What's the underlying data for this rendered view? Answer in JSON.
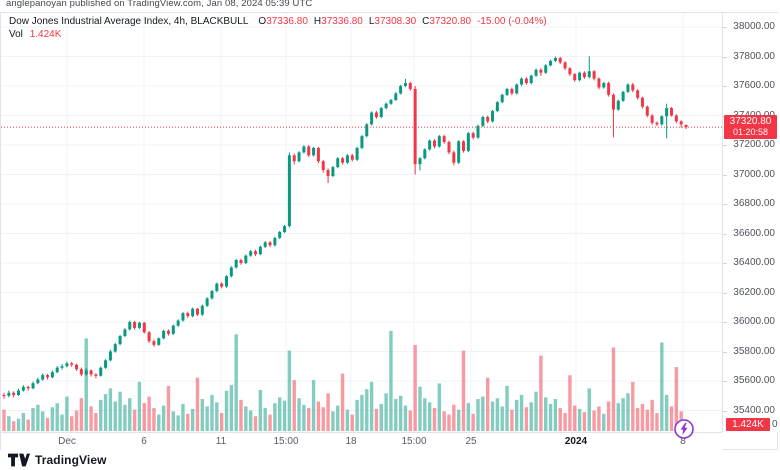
{
  "attribution": "anglepanoyan published on TradingView.com, Jan 08, 2024 05:39 UTC",
  "legend": {
    "title": "Dow Jones Industrial Average Index, 4h, BLACKBULL",
    "o_label": "O",
    "open": "37336.80",
    "h_label": "H",
    "high": "37336.80",
    "l_label": "L",
    "low": "37308.30",
    "c_label": "C",
    "close": "37320.80",
    "change": "-15.00 (-0.04%)",
    "vol_label": "Vol",
    "vol_value": "1.424K"
  },
  "price_axis": {
    "tick_labels": [
      "38000.00",
      "37800.00",
      "37600.00",
      "37400.00",
      "37200.00",
      "37000.00",
      "36800.00",
      "36600.00",
      "36400.00",
      "36200.00",
      "36000.00",
      "35800.00",
      "35600.00",
      "35400.00"
    ],
    "partial_label": "0"
  },
  "time_axis": {
    "ticks": [
      {
        "label": "Dec",
        "x": 66,
        "bold": false
      },
      {
        "label": "6",
        "x": 143,
        "bold": false
      },
      {
        "label": "11",
        "x": 220,
        "bold": false
      },
      {
        "label": "15:00",
        "x": 285,
        "bold": false
      },
      {
        "label": "18",
        "x": 350,
        "bold": false
      },
      {
        "label": "15:00",
        "x": 413,
        "bold": false
      },
      {
        "label": "25",
        "x": 470,
        "bold": false
      },
      {
        "label": "2024",
        "x": 575,
        "bold": true
      },
      {
        "label": "8",
        "x": 682,
        "bold": false
      }
    ]
  },
  "badges": {
    "price_line1": "37320.80",
    "price_countdown": "01:20:58",
    "volume": "1.424K"
  },
  "footer": {
    "brand": "TradingView"
  },
  "colors": {
    "up": "#089981",
    "down": "#f23645",
    "vol_up": "rgba(8,153,129,0.5)",
    "vol_down": "rgba(242,54,69,0.5)",
    "grid": "#f0f3fa",
    "border": "#e0e3eb",
    "axis_text": "#50535e",
    "text": "#131722",
    "badge": "#f23645",
    "accent_purple": "#9334d2"
  },
  "chart_data": {
    "type": "candlestick",
    "title": "Dow Jones Industrial Average Index",
    "interval": "4h",
    "exchange": "BLACKBULL",
    "legend_position": "top-left",
    "grid": true,
    "y_axis": {
      "min_tick": 35400,
      "max_tick": 38000,
      "tick_step": 200,
      "visible_range": [
        35230,
        38050
      ]
    },
    "x_ticks": [
      "Dec",
      "6",
      "11",
      "15:00",
      "18",
      "15:00",
      "25",
      "2024",
      "8"
    ],
    "price_line": 37320.8,
    "last": {
      "open": 37336.8,
      "high": 37336.8,
      "low": 37308.3,
      "close": 37320.8,
      "change": -15.0,
      "change_pct": -0.04,
      "volume_k": 1.424,
      "countdown": "01:20:58"
    },
    "volume_unit": "K",
    "candles": [
      [
        35505,
        35520,
        35480,
        35500,
        2.6
      ],
      [
        35500,
        35535,
        35490,
        35520,
        1.8
      ],
      [
        35520,
        35530,
        35488,
        35505,
        1.2
      ],
      [
        35505,
        35548,
        35498,
        35535,
        1.5
      ],
      [
        35535,
        35572,
        35528,
        35560,
        2.2
      ],
      [
        35560,
        35568,
        35535,
        35550,
        1.4
      ],
      [
        35550,
        35596,
        35545,
        35585,
        2.8
      ],
      [
        35585,
        35622,
        35578,
        35610,
        3.2
      ],
      [
        35610,
        35652,
        35602,
        35640,
        2.4
      ],
      [
        35640,
        35648,
        35610,
        35625,
        1.6
      ],
      [
        35625,
        35672,
        35618,
        35660,
        2.9
      ],
      [
        35660,
        35702,
        35652,
        35690,
        3.4
      ],
      [
        35690,
        35715,
        35678,
        35700,
        2.0
      ],
      [
        35700,
        35732,
        35692,
        35720,
        4.2
      ],
      [
        35720,
        35728,
        35695,
        35710,
        1.8
      ],
      [
        35710,
        35718,
        35668,
        35680,
        2.5
      ],
      [
        35680,
        35692,
        35632,
        35645,
        4.0
      ],
      [
        35645,
        35688,
        35636,
        35672,
        11.3
      ],
      [
        35672,
        35678,
        35630,
        35645,
        3.0
      ],
      [
        35645,
        35652,
        35618,
        35635,
        2.2
      ],
      [
        35635,
        35698,
        35630,
        35690,
        3.8
      ],
      [
        35690,
        35748,
        35682,
        35740,
        4.5
      ],
      [
        35740,
        35812,
        35735,
        35800,
        5.2
      ],
      [
        35800,
        35858,
        35792,
        35850,
        3.6
      ],
      [
        35850,
        35912,
        35842,
        35905,
        4.8
      ],
      [
        35905,
        35958,
        35898,
        35950,
        3.2
      ],
      [
        35950,
        36010,
        35942,
        36000,
        4.0
      ],
      [
        36000,
        36008,
        35948,
        35960,
        2.6
      ],
      [
        35960,
        36002,
        35952,
        35995,
        6.0
      ],
      [
        35995,
        36000,
        35922,
        35930,
        3.4
      ],
      [
        35930,
        35938,
        35858,
        35870,
        4.2
      ],
      [
        35870,
        35882,
        35832,
        35845,
        2.8
      ],
      [
        35845,
        35895,
        35838,
        35890,
        2.0
      ],
      [
        35890,
        35948,
        35882,
        35940,
        3.1
      ],
      [
        35940,
        35950,
        35908,
        35920,
        5.5
      ],
      [
        35920,
        35982,
        35912,
        35975,
        2.4
      ],
      [
        35975,
        36018,
        35968,
        36010,
        1.9
      ],
      [
        36010,
        36068,
        36002,
        36060,
        3.3
      ],
      [
        36060,
        36070,
        36028,
        36040,
        2.1
      ],
      [
        36040,
        36098,
        36032,
        36090,
        2.7
      ],
      [
        36090,
        36095,
        36040,
        36050,
        6.5
      ],
      [
        36050,
        36118,
        36042,
        36110,
        3.9
      ],
      [
        36110,
        36168,
        36102,
        36160,
        3.0
      ],
      [
        36160,
        36218,
        36152,
        36210,
        4.4
      ],
      [
        36210,
        36268,
        36202,
        36260,
        3.5
      ],
      [
        36260,
        36270,
        36228,
        36240,
        2.2
      ],
      [
        36240,
        36318,
        36232,
        36310,
        4.9
      ],
      [
        36310,
        36378,
        36302,
        36370,
        5.6
      ],
      [
        36370,
        36428,
        36362,
        36420,
        11.8
      ],
      [
        36420,
        36430,
        36388,
        36400,
        3.8
      ],
      [
        36400,
        36458,
        36392,
        36450,
        3.0
      ],
      [
        36450,
        36488,
        36442,
        36480,
        2.5
      ],
      [
        36480,
        36490,
        36448,
        36460,
        1.8
      ],
      [
        36460,
        36518,
        36452,
        36510,
        5.0
      ],
      [
        36510,
        36548,
        36502,
        36540,
        2.8
      ],
      [
        36540,
        36550,
        36508,
        36520,
        2.0
      ],
      [
        36520,
        36578,
        36512,
        36570,
        3.4
      ],
      [
        36570,
        36618,
        36562,
        36610,
        4.1
      ],
      [
        36610,
        36658,
        36602,
        36650,
        3.7
      ],
      [
        36650,
        37150,
        36640,
        37130,
        9.8
      ],
      [
        37130,
        37142,
        37068,
        37090,
        6.2
      ],
      [
        37090,
        37158,
        37082,
        37150,
        4.0
      ],
      [
        37150,
        37198,
        37142,
        37190,
        3.2
      ],
      [
        37190,
        37200,
        37118,
        37130,
        2.8
      ],
      [
        37130,
        37188,
        37122,
        37180,
        6.2
      ],
      [
        37180,
        37186,
        37078,
        37090,
        3.6
      ],
      [
        37090,
        37098,
        37012,
        37030,
        2.9
      ],
      [
        37030,
        37042,
        36942,
        36990,
        4.6
      ],
      [
        36990,
        37058,
        36982,
        37050,
        2.4
      ],
      [
        37050,
        37118,
        37042,
        37110,
        3.1
      ],
      [
        37110,
        37120,
        37068,
        37080,
        7.0
      ],
      [
        37080,
        37138,
        37072,
        37130,
        2.6
      ],
      [
        37130,
        37140,
        37088,
        37100,
        2.0
      ],
      [
        37100,
        37188,
        37092,
        37180,
        3.8
      ],
      [
        37180,
        37268,
        37172,
        37260,
        4.4
      ],
      [
        37260,
        37348,
        37252,
        37340,
        5.1
      ],
      [
        37340,
        37428,
        37332,
        37420,
        6.0
      ],
      [
        37420,
        37430,
        37378,
        37390,
        2.7
      ],
      [
        37390,
        37458,
        37382,
        37450,
        3.3
      ],
      [
        37450,
        37488,
        37442,
        37480,
        4.6
      ],
      [
        37480,
        37512,
        37472,
        37505,
        12.2
      ],
      [
        37505,
        37558,
        37498,
        37550,
        3.9
      ],
      [
        37550,
        37608,
        37542,
        37600,
        4.3
      ],
      [
        37600,
        37648,
        37592,
        37620,
        3.1
      ],
      [
        37620,
        37628,
        37568,
        37580,
        2.5
      ],
      [
        37580,
        37600,
        37000,
        37070,
        10.5
      ],
      [
        37070,
        37118,
        37028,
        37110,
        5.4
      ],
      [
        37110,
        37178,
        37102,
        37170,
        4.0
      ],
      [
        37170,
        37238,
        37162,
        37230,
        3.5
      ],
      [
        37230,
        37240,
        37178,
        37190,
        2.8
      ],
      [
        37190,
        37268,
        37182,
        37260,
        5.8
      ],
      [
        37260,
        37270,
        37208,
        37220,
        2.4
      ],
      [
        37220,
        37230,
        37138,
        37150,
        2.0
      ],
      [
        37150,
        37162,
        37062,
        37080,
        3.2
      ],
      [
        37080,
        37232,
        37072,
        37225,
        2.6
      ],
      [
        37225,
        37232,
        37148,
        37160,
        9.8
      ],
      [
        37160,
        37288,
        37152,
        37280,
        3.4
      ],
      [
        37280,
        37290,
        37238,
        37250,
        2.1
      ],
      [
        37250,
        37338,
        37242,
        37330,
        3.9
      ],
      [
        37330,
        37398,
        37322,
        37390,
        4.2
      ],
      [
        37390,
        37400,
        37348,
        37360,
        6.5
      ],
      [
        37360,
        37438,
        37352,
        37430,
        3.6
      ],
      [
        37430,
        37498,
        37422,
        37490,
        4.0
      ],
      [
        37490,
        37548,
        37482,
        37540,
        3.0
      ],
      [
        37540,
        37588,
        37532,
        37580,
        5.5
      ],
      [
        37580,
        37590,
        37538,
        37550,
        2.6
      ],
      [
        37550,
        37618,
        37542,
        37610,
        3.8
      ],
      [
        37610,
        37658,
        37602,
        37650,
        4.4
      ],
      [
        37650,
        37660,
        37608,
        37620,
        2.9
      ],
      [
        37620,
        37678,
        37612,
        37670,
        3.5
      ],
      [
        37670,
        37718,
        37662,
        37710,
        4.8
      ],
      [
        37710,
        37720,
        37668,
        37690,
        9.2
      ],
      [
        37690,
        37748,
        37682,
        37740,
        4.1
      ],
      [
        37740,
        37778,
        37732,
        37770,
        3.3
      ],
      [
        37770,
        37800,
        37762,
        37790,
        3.9
      ],
      [
        37790,
        37798,
        37748,
        37760,
        2.8
      ],
      [
        37760,
        37768,
        37708,
        37720,
        2.2
      ],
      [
        37720,
        37728,
        37668,
        37680,
        6.8
      ],
      [
        37680,
        37688,
        37628,
        37640,
        3.1
      ],
      [
        37640,
        37698,
        37632,
        37690,
        2.7
      ],
      [
        37690,
        37700,
        37648,
        37660,
        2.3
      ],
      [
        37660,
        37802,
        37652,
        37700,
        5.2
      ],
      [
        37700,
        37708,
        37638,
        37650,
        2.5
      ],
      [
        37650,
        37658,
        37578,
        37590,
        3.0
      ],
      [
        37590,
        37628,
        37582,
        37620,
        2.1
      ],
      [
        37620,
        37630,
        37528,
        37540,
        3.6
      ],
      [
        37540,
        37550,
        37252,
        37440,
        10.2
      ],
      [
        37440,
        37508,
        37432,
        37500,
        3.4
      ],
      [
        37500,
        37568,
        37492,
        37560,
        4.0
      ],
      [
        37560,
        37618,
        37552,
        37610,
        4.6
      ],
      [
        37610,
        37620,
        37558,
        37570,
        6.0
      ],
      [
        37570,
        37578,
        37508,
        37520,
        2.8
      ],
      [
        37520,
        37528,
        37448,
        37460,
        3.3
      ],
      [
        37460,
        37468,
        37388,
        37400,
        2.6
      ],
      [
        37400,
        37408,
        37338,
        37350,
        3.8
      ],
      [
        37350,
        37360,
        37328,
        37340,
        2.2
      ],
      [
        37340,
        37402,
        37332,
        37395,
        10.8
      ],
      [
        37395,
        37480,
        37245,
        37450,
        4.4
      ],
      [
        37450,
        37458,
        37392,
        37400,
        3.0
      ],
      [
        37400,
        37408,
        37348,
        37360,
        7.8
      ],
      [
        37360,
        37368,
        37318,
        37340,
        2.4
      ],
      [
        37336.8,
        37336.8,
        37308.3,
        37320.8,
        1.424
      ]
    ]
  }
}
